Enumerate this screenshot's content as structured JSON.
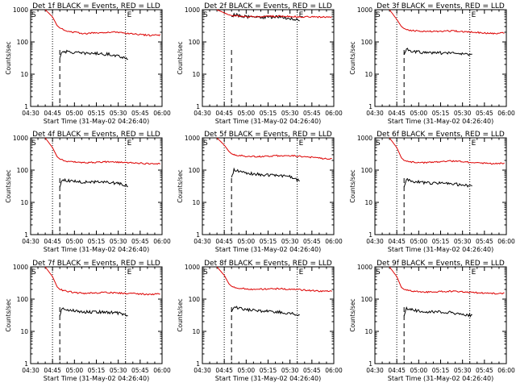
{
  "colors": {
    "events": "#000000",
    "lld": "#dd0000",
    "axis": "#000000"
  },
  "panel_common": {
    "ylabel": "Counts/sec",
    "xlabel": "Start Time (31-May-02 04:26:40)",
    "x_ticks": [
      "04:30",
      "04:45",
      "05:00",
      "05:15",
      "05:30",
      "05:45",
      "06:00"
    ],
    "y_ticks": [
      "1",
      "10",
      "100",
      "1000"
    ],
    "marker_start": "S",
    "marker_end": "E"
  },
  "chart_data": [
    {
      "type": "line",
      "title": "Det 1f BLACK = Events, RED = LLD",
      "yscale": "log",
      "ylim": [
        1,
        1000
      ],
      "x_units": "minutes after 04:26:40",
      "xlim": [
        3.33,
        93.33
      ],
      "dotted_lines_x": [
        18.3,
        68.3
      ],
      "dashed_line_x": 23.3,
      "series": [
        {
          "key": "events",
          "x": [
            23.3,
            25,
            30,
            35,
            40,
            45,
            50,
            55,
            60,
            65,
            70
          ],
          "y": [
            32,
            52,
            48,
            46,
            44,
            45,
            43,
            42,
            40,
            35,
            30
          ]
        },
        {
          "key": "lld",
          "x": [
            13.3,
            18.3,
            21.5,
            23.3,
            27,
            33,
            40,
            47,
            55,
            63,
            70,
            78,
            85,
            92
          ],
          "y": [
            1000,
            600,
            320,
            270,
            230,
            200,
            180,
            190,
            200,
            200,
            180,
            170,
            160,
            165
          ]
        }
      ]
    },
    {
      "type": "line",
      "title": "Det 2f BLACK = Events, RED = LLD",
      "yscale": "log",
      "ylim": [
        1,
        1000
      ],
      "x_units": "minutes after 04:26:40",
      "xlim": [
        3.33,
        93.33
      ],
      "dotted_lines_x": [
        18.3,
        68.3
      ],
      "dashed_line_x": 23.3,
      "series": [
        {
          "key": "events",
          "x": [
            23.3,
            25,
            30,
            35,
            40,
            45,
            50,
            55,
            60,
            65,
            68,
            70
          ],
          "y": [
            600,
            700,
            640,
            600,
            590,
            580,
            590,
            590,
            560,
            520,
            480,
            440
          ]
        },
        {
          "key": "lld",
          "x": [
            13.3,
            18.3,
            21,
            23.3,
            27,
            33,
            40,
            47,
            55,
            63,
            70,
            78,
            85,
            92
          ],
          "y": [
            1000,
            800,
            700,
            660,
            640,
            620,
            610,
            620,
            630,
            620,
            600,
            600,
            590,
            600
          ]
        }
      ]
    },
    {
      "type": "line",
      "title": "Det 3f BLACK = Events, RED = LLD",
      "yscale": "log",
      "ylim": [
        1,
        1000
      ],
      "x_units": "minutes after 04:26:40",
      "xlim": [
        3.33,
        93.33
      ],
      "dotted_lines_x": [
        18.3,
        68.3
      ],
      "dashed_line_x": 23.3,
      "series": [
        {
          "key": "events",
          "x": [
            23.3,
            25,
            30,
            35,
            40,
            45,
            50,
            55,
            60,
            65,
            70
          ],
          "y": [
            40,
            60,
            50,
            48,
            46,
            46,
            45,
            45,
            44,
            42,
            38
          ]
        },
        {
          "key": "lld",
          "x": [
            13.3,
            18.3,
            21.5,
            23.3,
            27,
            33,
            40,
            47,
            55,
            63,
            70,
            78,
            85,
            92
          ],
          "y": [
            1000,
            500,
            300,
            260,
            230,
            220,
            210,
            215,
            220,
            210,
            200,
            190,
            180,
            190
          ]
        }
      ]
    },
    {
      "type": "line",
      "title": "Det 4f BLACK = Events, RED = LLD",
      "yscale": "log",
      "ylim": [
        1,
        1000
      ],
      "x_units": "minutes after 04:26:40",
      "xlim": [
        3.33,
        93.33
      ],
      "dotted_lines_x": [
        18.3,
        68.3
      ],
      "dashed_line_x": 23.3,
      "series": [
        {
          "key": "events",
          "x": [
            23.3,
            25,
            30,
            35,
            40,
            45,
            50,
            55,
            60,
            65,
            70
          ],
          "y": [
            30,
            50,
            46,
            44,
            43,
            43,
            44,
            42,
            40,
            38,
            32
          ]
        },
        {
          "key": "lld",
          "x": [
            13.3,
            18.3,
            21.5,
            23.3,
            27,
            33,
            40,
            47,
            55,
            63,
            70,
            78,
            85,
            92
          ],
          "y": [
            1000,
            500,
            260,
            220,
            190,
            180,
            170,
            175,
            180,
            175,
            170,
            165,
            155,
            160
          ]
        }
      ]
    },
    {
      "type": "line",
      "title": "Det 5f BLACK = Events, RED = LLD",
      "yscale": "log",
      "ylim": [
        1,
        1000
      ],
      "x_units": "minutes after 04:26:40",
      "xlim": [
        3.33,
        93.33
      ],
      "dotted_lines_x": [
        18.3,
        68.3
      ],
      "dashed_line_x": 23.3,
      "series": [
        {
          "key": "events",
          "x": [
            23.3,
            25,
            30,
            35,
            40,
            45,
            50,
            55,
            60,
            65,
            70
          ],
          "y": [
            60,
            100,
            90,
            80,
            75,
            72,
            70,
            68,
            66,
            60,
            45
          ]
        },
        {
          "key": "lld",
          "x": [
            13.3,
            18.3,
            21.5,
            23.3,
            27,
            33,
            40,
            47,
            55,
            63,
            70,
            78,
            85,
            92
          ],
          "y": [
            1000,
            600,
            380,
            320,
            290,
            270,
            260,
            270,
            280,
            280,
            270,
            250,
            230,
            220
          ]
        }
      ]
    },
    {
      "type": "line",
      "title": "Det 6f BLACK = Events, RED = LLD",
      "yscale": "log",
      "ylim": [
        1,
        1000
      ],
      "x_units": "minutes after 04:26:40",
      "xlim": [
        3.33,
        93.33
      ],
      "dotted_lines_x": [
        18.3,
        68.3
      ],
      "dashed_line_x": 23.3,
      "series": [
        {
          "key": "events",
          "x": [
            23.3,
            25,
            30,
            35,
            40,
            45,
            50,
            55,
            60,
            65,
            70
          ],
          "y": [
            30,
            50,
            45,
            42,
            40,
            40,
            40,
            38,
            36,
            34,
            30
          ]
        },
        {
          "key": "lld",
          "x": [
            13.3,
            18.3,
            21.5,
            23.3,
            27,
            33,
            40,
            47,
            55,
            63,
            70,
            78,
            85,
            92
          ],
          "y": [
            1000,
            500,
            240,
            200,
            180,
            170,
            170,
            180,
            190,
            185,
            170,
            165,
            160,
            165
          ]
        }
      ]
    },
    {
      "type": "line",
      "title": "Det 7f BLACK = Events, RED = LLD",
      "yscale": "log",
      "ylim": [
        1,
        1000
      ],
      "x_units": "minutes after 04:26:40",
      "xlim": [
        3.33,
        93.33
      ],
      "dotted_lines_x": [
        18.3,
        68.3
      ],
      "dashed_line_x": 23.3,
      "series": [
        {
          "key": "events",
          "x": [
            23.3,
            25,
            30,
            35,
            40,
            45,
            50,
            55,
            60,
            65,
            70
          ],
          "y": [
            30,
            52,
            45,
            42,
            40,
            40,
            40,
            39,
            38,
            36,
            32
          ]
        },
        {
          "key": "lld",
          "x": [
            13.3,
            18.3,
            21.5,
            23.3,
            27,
            33,
            40,
            47,
            55,
            63,
            70,
            78,
            85,
            92
          ],
          "y": [
            1000,
            500,
            240,
            200,
            180,
            160,
            150,
            155,
            160,
            155,
            150,
            145,
            140,
            145
          ]
        }
      ]
    },
    {
      "type": "line",
      "title": "Det 8f BLACK = Events, RED = LLD",
      "yscale": "log",
      "ylim": [
        1,
        1000
      ],
      "x_units": "minutes after 04:26:40",
      "xlim": [
        3.33,
        93.33
      ],
      "dotted_lines_x": [
        18.3,
        68.3
      ],
      "dashed_line_x": 23.3,
      "series": [
        {
          "key": "events",
          "x": [
            23.3,
            25,
            30,
            35,
            40,
            45,
            50,
            55,
            60,
            65,
            70
          ],
          "y": [
            40,
            60,
            50,
            46,
            44,
            43,
            42,
            40,
            38,
            36,
            32
          ]
        },
        {
          "key": "lld",
          "x": [
            13.3,
            18.3,
            21.5,
            23.3,
            27,
            33,
            40,
            47,
            55,
            63,
            70,
            78,
            85,
            92
          ],
          "y": [
            1000,
            550,
            300,
            250,
            220,
            210,
            200,
            205,
            210,
            205,
            195,
            185,
            175,
            180
          ]
        }
      ]
    },
    {
      "type": "line",
      "title": "Det 9f BLACK = Events, RED = LLD",
      "yscale": "log",
      "ylim": [
        1,
        1000
      ],
      "x_units": "minutes after 04:26:40",
      "xlim": [
        3.33,
        93.33
      ],
      "dotted_lines_x": [
        18.3,
        68.3
      ],
      "dashed_line_x": 23.3,
      "series": [
        {
          "key": "events",
          "x": [
            23.3,
            25,
            30,
            35,
            40,
            45,
            50,
            55,
            60,
            65,
            70
          ],
          "y": [
            30,
            52,
            45,
            42,
            40,
            40,
            40,
            38,
            36,
            34,
            30
          ]
        },
        {
          "key": "lld",
          "x": [
            13.3,
            18.3,
            21.5,
            23.3,
            27,
            33,
            40,
            47,
            55,
            63,
            70,
            78,
            85,
            92
          ],
          "y": [
            1000,
            500,
            230,
            200,
            180,
            170,
            165,
            170,
            175,
            170,
            160,
            155,
            150,
            150
          ]
        }
      ]
    }
  ]
}
